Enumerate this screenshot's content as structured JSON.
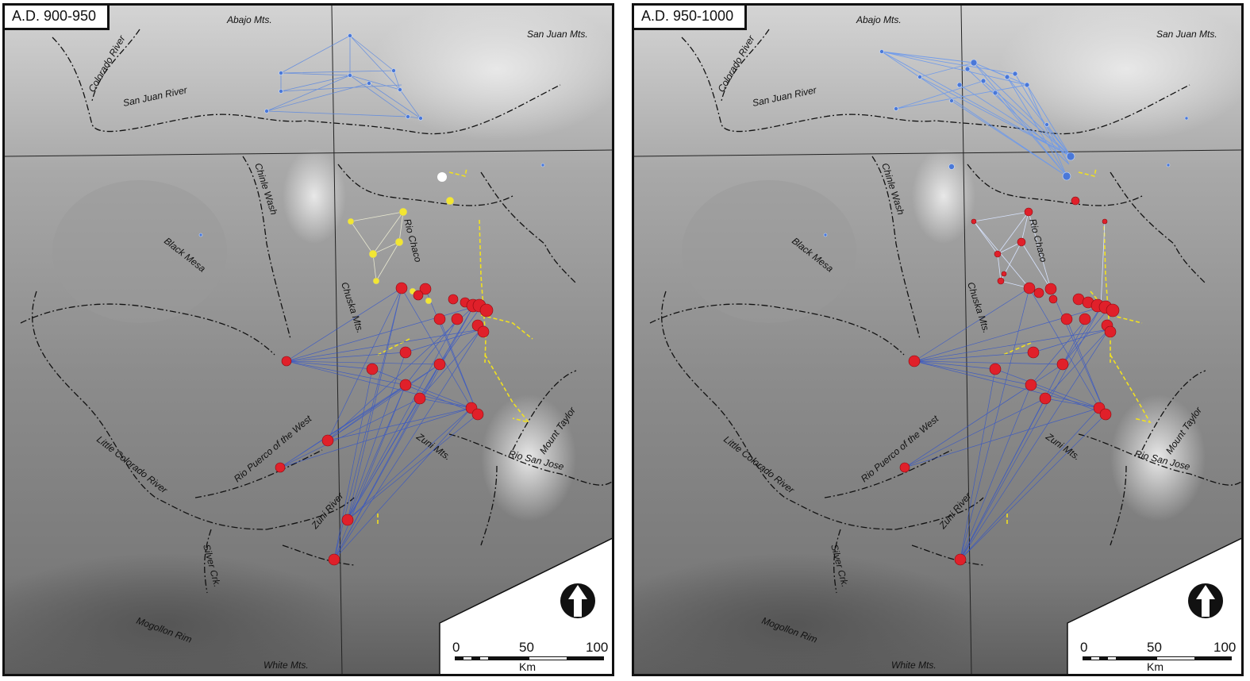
{
  "panels": [
    {
      "title": "A.D. 900-950",
      "blue_sites_shown": "few",
      "yellow_sites_shown": true
    },
    {
      "title": "A.D. 950-1000",
      "blue_sites_shown": "many",
      "yellow_sites_shown": false
    }
  ],
  "labels": {
    "abajo": "Abajo Mts.",
    "sanjuan_mts": "San Juan Mts.",
    "colorado": "Colorado River",
    "sanjuan_river": "San Juan River",
    "chinle": "Chinle Wash",
    "black_mesa": "Black Mesa",
    "rio_chaco": "Rio Chaco",
    "chuska": "Chuska Mts.",
    "puerco": "Rio Puerco of the West",
    "little_colorado": "Little Colorado River",
    "zuni_mts": "Zuni Mts.",
    "zuni_river": "Zuni River",
    "rio_san_jose": "Rio San Jose",
    "mount_taylor": "Mount Taylor",
    "silver_crk": "Silver Crk.",
    "mogollon": "Mogollon Rim",
    "white_mts": "White Mts."
  },
  "scale": {
    "t0": "0",
    "t50": "50",
    "t100": "100",
    "unit": "Km"
  },
  "colors": {
    "site_red": "#e0202a",
    "site_yellow": "#f2e632",
    "site_blue": "#4a78d8",
    "link_blue": "#2a4fd0",
    "road_yellow": "#f0e020"
  },
  "icons": {
    "north": "north-arrow-icon"
  }
}
